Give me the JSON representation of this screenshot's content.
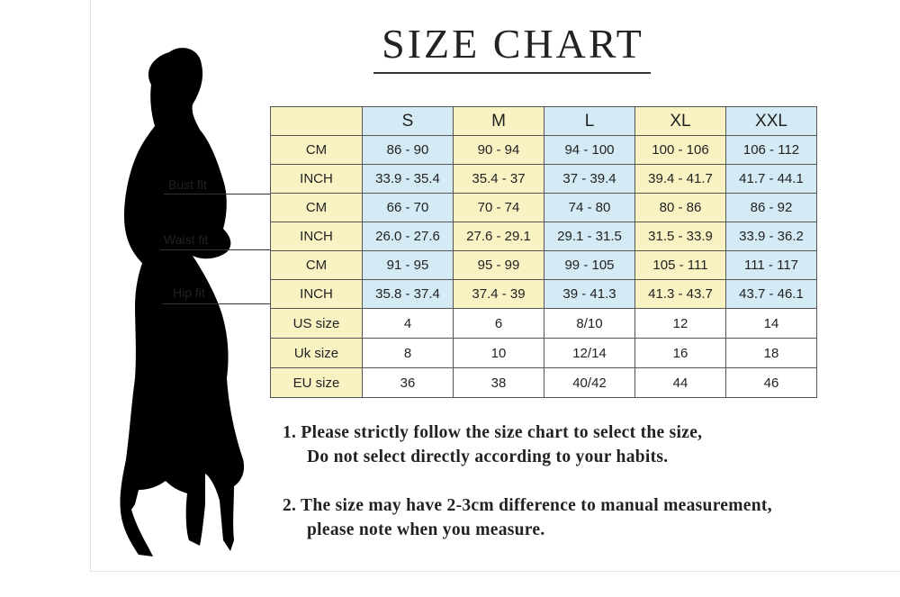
{
  "title": "SIZE CHART",
  "colors": {
    "yellow": "#f9f3c4",
    "blue": "#d4ebf5"
  },
  "fit_labels": {
    "bust": "Bust fit",
    "waist": "Waist fit",
    "hip": "Hip fit"
  },
  "table": {
    "headers": [
      "",
      "S",
      "M",
      "L",
      "XL",
      "XXL"
    ],
    "rows": [
      {
        "label": "CM",
        "values": [
          "86 - 90",
          "90 - 94",
          "94 - 100",
          "100 - 106",
          "106 - 112"
        ]
      },
      {
        "label": "INCH",
        "values": [
          "33.9 - 35.4",
          "35.4 - 37",
          "37 - 39.4",
          "39.4 - 41.7",
          "41.7 - 44.1"
        ]
      },
      {
        "label": "CM",
        "values": [
          "66 - 70",
          "70 - 74",
          "74 - 80",
          "80 - 86",
          "86 - 92"
        ]
      },
      {
        "label": "INCH",
        "values": [
          "26.0 - 27.6",
          "27.6 - 29.1",
          "29.1 - 31.5",
          "31.5 - 33.9",
          "33.9 - 36.2"
        ]
      },
      {
        "label": "CM",
        "values": [
          "91 - 95",
          "95 - 99",
          "99 - 105",
          "105 - 111",
          "111 - 117"
        ]
      },
      {
        "label": "INCH",
        "values": [
          "35.8 - 37.4",
          "37.4 - 39",
          "39 - 41.3",
          "41.3 - 43.7",
          "43.7 - 46.1"
        ]
      },
      {
        "label": "US size",
        "values": [
          "4",
          "6",
          "8/10",
          "12",
          "14"
        ]
      },
      {
        "label": "Uk size",
        "values": [
          "8",
          "10",
          "12/14",
          "16",
          "18"
        ]
      },
      {
        "label": "EU size",
        "values": [
          "36",
          "38",
          "40/42",
          "44",
          "46"
        ]
      }
    ]
  },
  "notes": [
    {
      "line1": "1.  Please strictly follow the size chart to select the size,",
      "line2": "Do not select directly according to your habits."
    },
    {
      "line1": "2.  The size may have 2-3cm difference  to manual measurement,",
      "line2": "please note when you measure."
    }
  ]
}
